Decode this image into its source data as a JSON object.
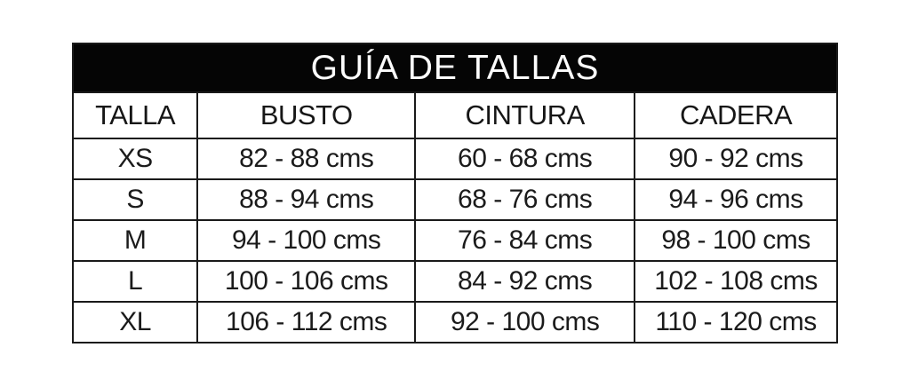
{
  "chart_data": {
    "type": "table",
    "title": "GUÍA DE TALLAS",
    "columns": [
      "TALLA",
      "BUSTO",
      "CINTURA",
      "CADERA"
    ],
    "rows": [
      [
        "XS",
        "82 - 88 cms",
        "60 - 68 cms",
        "90 - 92 cms"
      ],
      [
        "S",
        "88 - 94 cms",
        "68 - 76 cms",
        "94 - 96 cms"
      ],
      [
        "M",
        "94 - 100 cms",
        "76 - 84 cms",
        "98 - 100 cms"
      ],
      [
        "L",
        "100 - 106 cms",
        "84 - 92 cms",
        "102 - 108 cms"
      ],
      [
        "XL",
        "106 - 112 cms",
        "92 - 100 cms",
        "110 - 120 cms"
      ]
    ],
    "units": "cms"
  },
  "colors": {
    "page_background": "#ffffff",
    "title_background": "#050505",
    "title_text": "#fdfdfd",
    "border": "#1a1a1a",
    "cell_text": "#1b1b1b"
  }
}
